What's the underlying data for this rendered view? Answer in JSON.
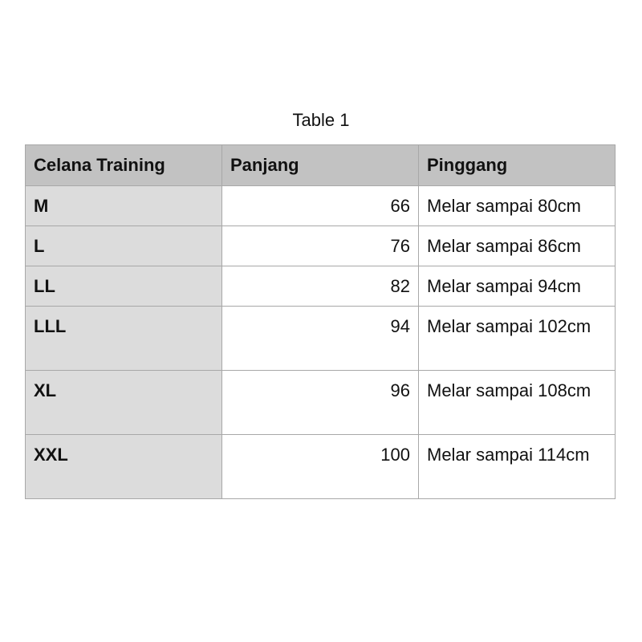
{
  "caption": "Table 1",
  "headers": [
    "Celana Training",
    "Panjang",
    "Pinggang"
  ],
  "rows": [
    {
      "size": "M",
      "panjang": "66",
      "pinggang": "Melar sampai 80cm"
    },
    {
      "size": "L",
      "panjang": "76",
      "pinggang": "Melar sampai 86cm"
    },
    {
      "size": "LL",
      "panjang": "82",
      "pinggang": "Melar sampai 94cm"
    },
    {
      "size": "LLL",
      "panjang": "94",
      "pinggang": "Melar sampai 102cm"
    },
    {
      "size": "XL",
      "panjang": "96",
      "pinggang": "Melar sampai 108cm"
    },
    {
      "size": "XXL",
      "panjang": "100",
      "pinggang": "Melar sampai 114cm"
    }
  ]
}
